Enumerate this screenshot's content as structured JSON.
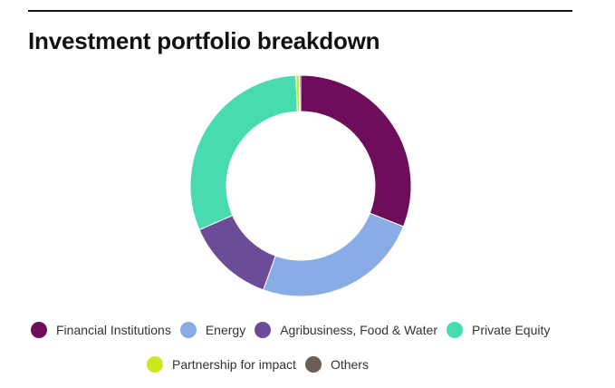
{
  "title": "Investment portfolio breakdown",
  "chart_data": {
    "type": "pie",
    "variant": "donut",
    "title": "Investment portfolio breakdown",
    "slices": [
      {
        "label": "Financial Institutions",
        "value": 31.0,
        "color": "#6e0d5a"
      },
      {
        "label": "Energy",
        "value": 24.5,
        "color": "#8aace6"
      },
      {
        "label": "Agribusiness, Food & Water",
        "value": 13.0,
        "color": "#6c4c96"
      },
      {
        "label": "Private Equity",
        "value": 30.8,
        "color": "#48dbb0"
      },
      {
        "label": "Partnership for impact",
        "value": 0.5,
        "color": "#cde61e"
      },
      {
        "label": "Others",
        "value": 0.2,
        "color": "#6b5e57"
      }
    ],
    "legend_position": "bottom"
  },
  "legend": {
    "row1": [
      {
        "label": "Financial Institutions",
        "color": "#6e0d5a"
      },
      {
        "label": "Energy",
        "color": "#8aace6"
      },
      {
        "label": "Agribusiness, Food & Water",
        "color": "#6c4c96"
      },
      {
        "label": "Private Equity",
        "color": "#48dbb0"
      }
    ],
    "row2": [
      {
        "label": "Partnership for impact",
        "color": "#cde61e"
      },
      {
        "label": "Others",
        "color": "#6b5e57"
      }
    ]
  }
}
